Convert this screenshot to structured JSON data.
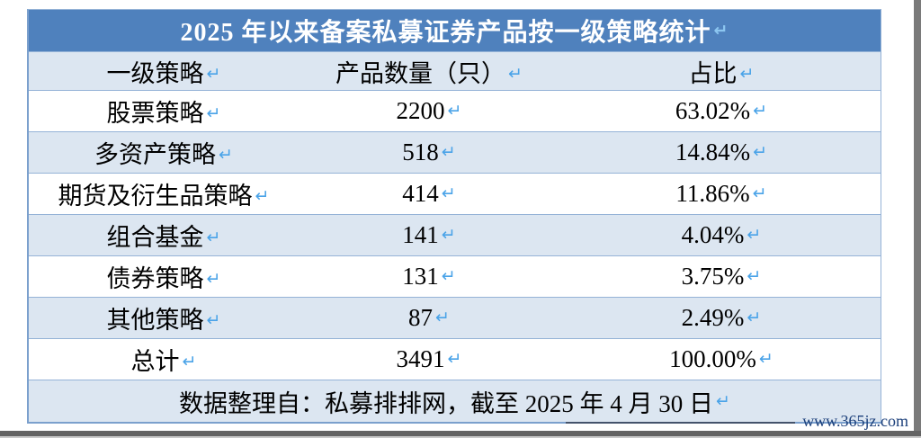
{
  "colors": {
    "title_bg": "#4f81bd",
    "title_text": "#ffffff",
    "row_alt_bg": "#dce6f1",
    "row_bg": "#ffffff",
    "border": "#95b3d7",
    "outer_border": "#7ba0cd",
    "return_mark": "#4aa3e8",
    "watermark_text": "#1b3f7a",
    "body_text": "#000000",
    "window_edge": "#7a7a7a"
  },
  "marks": {
    "return": "↵"
  },
  "table": {
    "title": "2025 年以来备案私募证券产品按一级策略统计",
    "columns": {
      "strategy": "一级策略",
      "count": "产品数量（只）",
      "share": "占比"
    },
    "rows": [
      {
        "strategy": "股票策略",
        "count": "2200",
        "share": "63.02%"
      },
      {
        "strategy": "多资产策略",
        "count": "518",
        "share": "14.84%"
      },
      {
        "strategy": "期货及衍生品策略",
        "count": "414",
        "share": "11.86%"
      },
      {
        "strategy": "组合基金",
        "count": "141",
        "share": "4.04%"
      },
      {
        "strategy": "债券策略",
        "count": "131",
        "share": "3.75%"
      },
      {
        "strategy": "其他策略",
        "count": "87",
        "share": "2.49%"
      },
      {
        "strategy": "总计",
        "count": "3491",
        "share": "100.00%"
      }
    ],
    "footer": "数据整理自：私募排排网，截至 2025 年 4 月 30 日"
  },
  "watermark": {
    "url": "www.365jz.com"
  },
  "chart_data": {
    "type": "table",
    "title": "2025 年以来备案私募证券产品按一级策略统计",
    "columns": [
      "一级策略",
      "产品数量（只）",
      "占比"
    ],
    "categories": [
      "股票策略",
      "多资产策略",
      "期货及衍生品策略",
      "组合基金",
      "债券策略",
      "其他策略"
    ],
    "series": [
      {
        "name": "产品数量（只）",
        "values": [
          2200,
          518,
          414,
          141,
          131,
          87
        ]
      },
      {
        "name": "占比",
        "values": [
          63.02,
          14.84,
          11.86,
          4.04,
          3.75,
          2.49
        ]
      }
    ],
    "total": {
      "count": 3491,
      "share": 100.0
    },
    "source_note": "数据整理自：私募排排网，截至 2025 年 4 月 30 日"
  }
}
